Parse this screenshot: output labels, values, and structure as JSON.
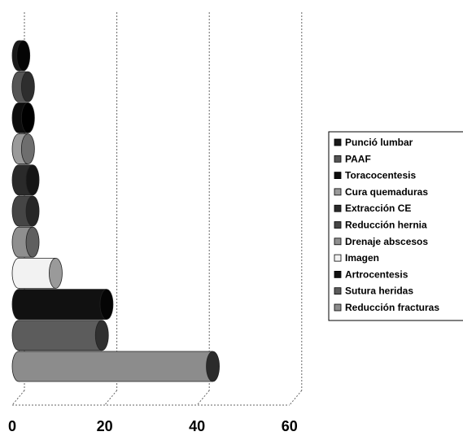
{
  "chart_data": {
    "type": "bar",
    "orientation": "horizontal",
    "style": "3d-cylinder",
    "categories": [
      "Punció lumbar",
      "PAAF",
      "Toracocentesis",
      "Cura quemaduras",
      "Extracción CE",
      "Reducción hernia",
      "Drenaje abscesos",
      "Imagen",
      "Artrocentesis",
      "Sutura heridas",
      "Reducción fracturas"
    ],
    "values": [
      1,
      2,
      2,
      2,
      3,
      3,
      3,
      8,
      19,
      18,
      42
    ],
    "colors": [
      "#1a1a1a",
      "#555555",
      "#0d0d0d",
      "#9a9a9a",
      "#2a2a2a",
      "#454545",
      "#8f8f8f",
      "#f2f2f2",
      "#111111",
      "#5c5c5c",
      "#8c8c8c"
    ],
    "end_colors": [
      "#050505",
      "#2e2e2e",
      "#000000",
      "#6e6e6e",
      "#151515",
      "#262626",
      "#5f5f5f",
      "#9a9a9a",
      "#050505",
      "#303030",
      "#2b2b2b"
    ],
    "x_ticks": [
      0,
      20,
      40,
      60
    ],
    "xlim": [
      0,
      60
    ],
    "grid": true,
    "legend_position": "right",
    "legend_order": [
      "Punció lumbar",
      "PAAF",
      "Toracocentesis",
      "Cura quemaduras",
      "Extracción CE",
      "Reducción hernia",
      "Drenaje abscesos",
      "Imagen",
      "Artrocentesis",
      "Sutura heridas",
      "Reducción fracturas"
    ]
  }
}
